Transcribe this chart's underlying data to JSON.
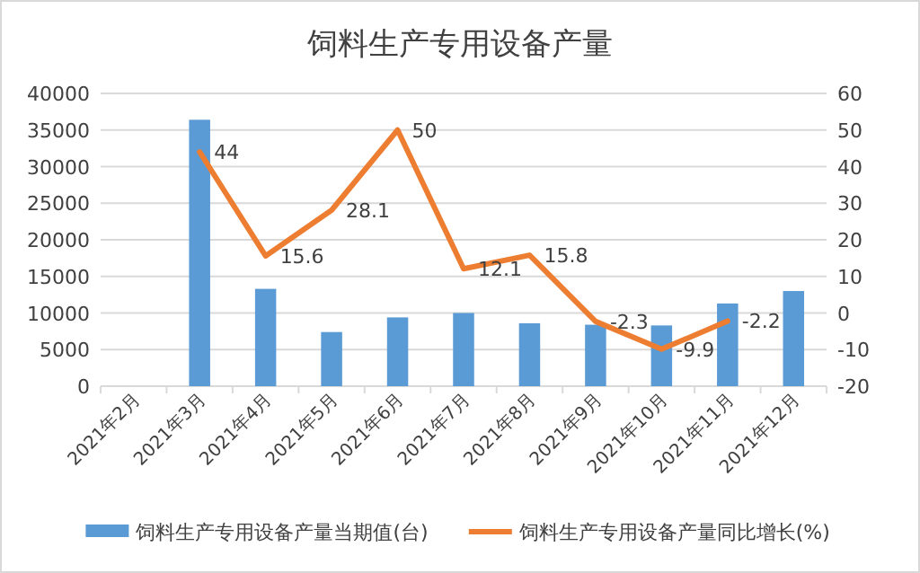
{
  "chart_data": {
    "type": "bar",
    "title": "饲料生产专用设备产量",
    "categories": [
      "2021年2月",
      "2021年3月",
      "2021年4月",
      "2021年5月",
      "2021年6月",
      "2021年7月",
      "2021年8月",
      "2021年9月",
      "2021年10月",
      "2021年11月",
      "2021年12月"
    ],
    "series": [
      {
        "name": "饲料生产专用设备产量当期值(台)",
        "color": "#5b9bd5",
        "values": [
          null,
          36400,
          13300,
          7400,
          9400,
          10000,
          8600,
          8400,
          8300,
          11300,
          13000
        ]
      },
      {
        "name": "饲料生产专用设备产量同比增长(%)",
        "type": "line",
        "axis": "y2",
        "color": "#ed7d31",
        "values": [
          null,
          44,
          15.6,
          28.1,
          50,
          12.1,
          15.8,
          -2.3,
          -9.9,
          -2.2,
          null
        ],
        "value_labels": [
          null,
          "44",
          "15.6",
          "28.1",
          "50",
          "12.1",
          "15.8",
          "-2.3",
          "-9.9",
          "-2.2",
          null
        ]
      }
    ],
    "ylim": [
      0,
      40000
    ],
    "yticks": [
      0,
      5000,
      10000,
      15000,
      20000,
      25000,
      30000,
      35000,
      40000
    ],
    "y2lim": [
      -20,
      60
    ],
    "y2ticks": [
      -20,
      -10,
      0,
      10,
      20,
      30,
      40,
      50,
      60
    ],
    "grid": "y",
    "legend": "bottom"
  }
}
